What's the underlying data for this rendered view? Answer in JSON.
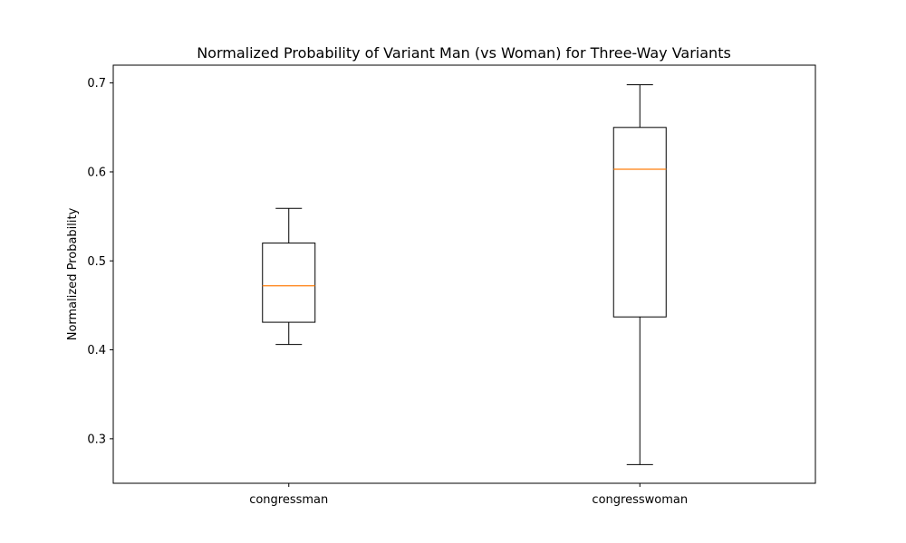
{
  "chart_data": {
    "type": "box",
    "title": "Normalized Probability of Variant Man (vs Woman) for Three-Way Variants",
    "xlabel": "",
    "ylabel": "Normalized Probability",
    "ylim": [
      0.25,
      0.72
    ],
    "yticks": [
      0.3,
      0.4,
      0.5,
      0.6,
      0.7
    ],
    "ytick_labels": [
      "0.3",
      "0.4",
      "0.5",
      "0.6",
      "0.7"
    ],
    "grid": false,
    "categories": [
      "congressman",
      "congresswoman"
    ],
    "boxes": [
      {
        "category": "congressman",
        "whisker_low": 0.406,
        "q1": 0.431,
        "median": 0.472,
        "q3": 0.52,
        "whisker_high": 0.559
      },
      {
        "category": "congresswoman",
        "whisker_low": 0.271,
        "q1": 0.437,
        "median": 0.603,
        "q3": 0.65,
        "whisker_high": 0.698
      }
    ],
    "colors": {
      "box": "#000000",
      "median": "#ff7f0e"
    }
  }
}
